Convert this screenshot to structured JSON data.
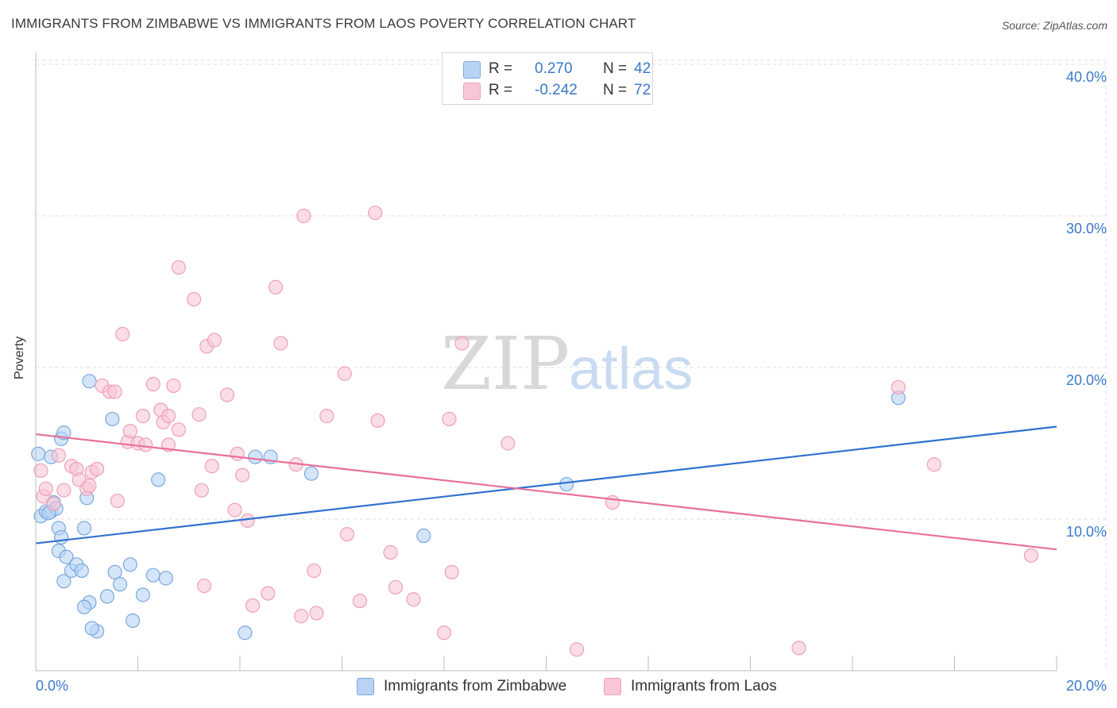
{
  "header": {
    "title": "IMMIGRANTS FROM ZIMBABWE VS IMMIGRANTS FROM LAOS POVERTY CORRELATION CHART",
    "source": "Source: ZipAtlas.com"
  },
  "watermark": {
    "zip": "ZIP",
    "atlas": "atlas"
  },
  "legend": {
    "rows": [
      {
        "r_label": "R =",
        "r_value": "0.270",
        "n_label": "N =",
        "n_value": "42"
      },
      {
        "r_label": "R =",
        "r_value": "-0.242",
        "n_label": "N =",
        "n_value": "72"
      }
    ]
  },
  "colors": {
    "zimbabwe_fill": "#b8d3f5",
    "zimbabwe_stroke": "#7aa8e0",
    "zimbabwe_line": "#2f72d0",
    "laos_fill": "#f9c6d6",
    "laos_stroke": "#eea0b8",
    "laos_line": "#e8709a",
    "tick_text": "#3a78c8",
    "grid": "#dcdcdc"
  },
  "chart_data": {
    "type": "scatter",
    "title": "IMMIGRANTS FROM ZIMBABWE VS IMMIGRANTS FROM LAOS POVERTY CORRELATION CHART",
    "xlabel": "",
    "ylabel": "Poverty",
    "xlim": [
      0,
      20
    ],
    "ylim": [
      0,
      40
    ],
    "x_tick_labels": [
      "0.0%",
      "20.0%"
    ],
    "y_tick_labels": [
      "10.0%",
      "20.0%",
      "30.0%",
      "40.0%"
    ],
    "y_ticks": [
      10,
      20,
      30,
      40
    ],
    "grid": true,
    "legend_position": "top-center",
    "series": [
      {
        "name": "Immigrants from Zimbabwe",
        "color": "#7aa8e0",
        "trend": [
          [
            0,
            8.4
          ],
          [
            20,
            16.1
          ]
        ],
        "points": [
          [
            0.05,
            14.3
          ],
          [
            0.1,
            10.2
          ],
          [
            0.2,
            10.5
          ],
          [
            0.3,
            10.5
          ],
          [
            0.35,
            11.1
          ],
          [
            0.4,
            10.7
          ],
          [
            0.3,
            14.1
          ],
          [
            0.45,
            9.4
          ],
          [
            0.5,
            15.3
          ],
          [
            0.55,
            15.7
          ],
          [
            0.5,
            8.8
          ],
          [
            0.45,
            7.9
          ],
          [
            0.6,
            7.5
          ],
          [
            0.55,
            5.9
          ],
          [
            0.7,
            6.6
          ],
          [
            0.8,
            7.0
          ],
          [
            0.9,
            6.6
          ],
          [
            0.95,
            9.4
          ],
          [
            1.0,
            11.4
          ],
          [
            1.05,
            19.1
          ],
          [
            1.05,
            4.5
          ],
          [
            0.95,
            4.2
          ],
          [
            1.2,
            2.6
          ],
          [
            1.1,
            2.8
          ],
          [
            1.5,
            16.6
          ],
          [
            1.4,
            4.9
          ],
          [
            1.55,
            6.5
          ],
          [
            1.65,
            5.7
          ],
          [
            1.85,
            7.0
          ],
          [
            1.9,
            3.3
          ],
          [
            2.1,
            5.0
          ],
          [
            2.3,
            6.3
          ],
          [
            2.4,
            12.6
          ],
          [
            2.55,
            6.1
          ],
          [
            4.1,
            2.5
          ],
          [
            4.3,
            14.1
          ],
          [
            4.6,
            14.1
          ],
          [
            5.4,
            13.0
          ],
          [
            7.6,
            8.9
          ],
          [
            10.4,
            12.3
          ],
          [
            16.9,
            18.0
          ],
          [
            0.25,
            10.4
          ]
        ]
      },
      {
        "name": "Immigrants from Laos",
        "color": "#eea0b8",
        "trend": [
          [
            0,
            15.6
          ],
          [
            20,
            8.0
          ]
        ],
        "points": [
          [
            0.1,
            13.2
          ],
          [
            0.15,
            11.5
          ],
          [
            0.2,
            12.0
          ],
          [
            0.35,
            11.0
          ],
          [
            0.45,
            14.2
          ],
          [
            0.55,
            11.9
          ],
          [
            0.7,
            13.5
          ],
          [
            0.8,
            13.3
          ],
          [
            0.85,
            12.6
          ],
          [
            1.0,
            12.0
          ],
          [
            1.05,
            12.2
          ],
          [
            1.1,
            13.1
          ],
          [
            1.2,
            13.3
          ],
          [
            1.3,
            18.8
          ],
          [
            1.45,
            18.4
          ],
          [
            1.55,
            18.4
          ],
          [
            1.6,
            11.2
          ],
          [
            1.7,
            22.2
          ],
          [
            1.8,
            15.1
          ],
          [
            1.85,
            15.8
          ],
          [
            2.0,
            15.0
          ],
          [
            2.1,
            16.8
          ],
          [
            2.15,
            14.9
          ],
          [
            2.3,
            18.9
          ],
          [
            2.45,
            17.2
          ],
          [
            2.5,
            16.4
          ],
          [
            2.6,
            14.9
          ],
          [
            2.6,
            16.8
          ],
          [
            2.7,
            18.8
          ],
          [
            2.8,
            15.9
          ],
          [
            2.8,
            26.6
          ],
          [
            3.1,
            24.5
          ],
          [
            3.2,
            16.9
          ],
          [
            3.25,
            11.9
          ],
          [
            3.3,
            5.6
          ],
          [
            3.35,
            21.4
          ],
          [
            3.45,
            13.5
          ],
          [
            3.5,
            21.8
          ],
          [
            3.75,
            18.2
          ],
          [
            3.9,
            10.6
          ],
          [
            3.95,
            14.3
          ],
          [
            4.05,
            12.9
          ],
          [
            4.15,
            9.9
          ],
          [
            4.25,
            4.3
          ],
          [
            4.55,
            5.1
          ],
          [
            4.7,
            25.3
          ],
          [
            4.8,
            21.6
          ],
          [
            5.1,
            13.6
          ],
          [
            5.25,
            30.0
          ],
          [
            5.2,
            3.6
          ],
          [
            5.45,
            6.6
          ],
          [
            5.5,
            3.8
          ],
          [
            5.7,
            16.8
          ],
          [
            6.05,
            19.6
          ],
          [
            6.1,
            9.0
          ],
          [
            6.35,
            4.6
          ],
          [
            6.65,
            30.2
          ],
          [
            6.7,
            16.5
          ],
          [
            6.95,
            7.8
          ],
          [
            7.05,
            5.5
          ],
          [
            7.4,
            4.7
          ],
          [
            8.0,
            2.5
          ],
          [
            8.1,
            16.6
          ],
          [
            8.15,
            6.5
          ],
          [
            8.35,
            21.6
          ],
          [
            9.25,
            15.0
          ],
          [
            10.6,
            1.4
          ],
          [
            11.3,
            11.1
          ],
          [
            14.95,
            1.5
          ],
          [
            16.9,
            18.7
          ],
          [
            17.6,
            13.6
          ],
          [
            19.5,
            7.6
          ]
        ]
      }
    ]
  },
  "bottom_legend": {
    "items": [
      {
        "label": "Immigrants from Zimbabwe"
      },
      {
        "label": "Immigrants from Laos"
      }
    ]
  }
}
